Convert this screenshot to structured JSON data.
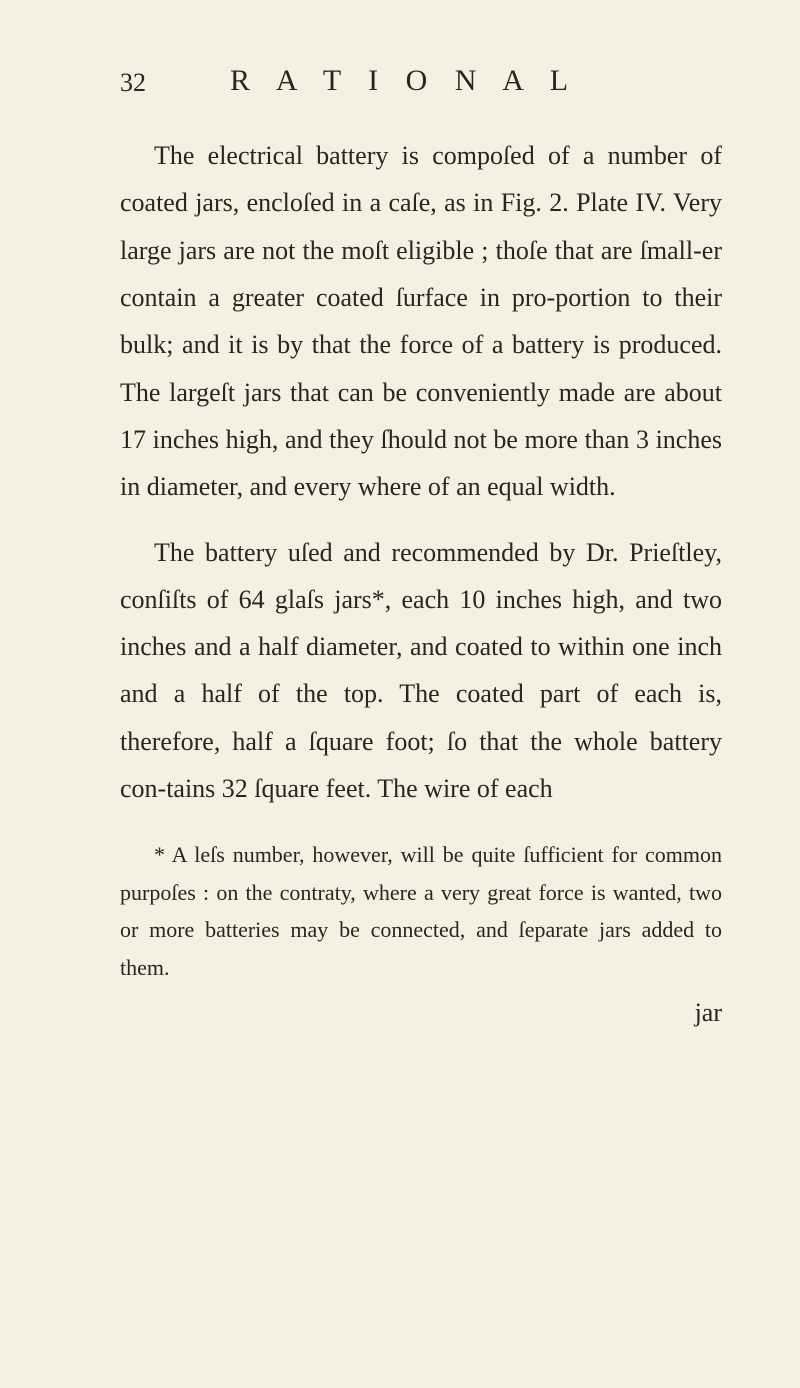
{
  "page": {
    "number": "32",
    "running_header": "R A T I O N A L"
  },
  "paragraphs": {
    "p1": "The electrical battery is compoſed of a number of coated jars, encloſed in a caſe, as in Fig. 2. Plate IV. Very large jars are not the moſt eligible ; thoſe that are ſmall-er contain a greater coated ſurface in pro-portion to their bulk; and it is by that the force of a battery is produced. The largeſt jars that can be conveniently made are about 17 inches high, and they ſhould not be more than 3 inches in diameter, and every where of an equal width.",
    "p2": "The battery uſed and recommended by Dr. Prieſtley, conſiſts of 64 glaſs jars*, each 10 inches high, and two inches and a half diameter, and coated to within one inch and a half of the top. The coated part of each is, therefore, half a ſquare foot; ſo that the whole battery con-tains 32 ſquare feet. The wire of each"
  },
  "footnote": {
    "text": "* A leſs number, however, will be quite ſufficient for common purpoſes : on the contraty, where a very great force is wanted, two or more batteries may be connected, and ſeparate jars added to them."
  },
  "catchword": "jar",
  "style": {
    "background_color": "#f5f0e1",
    "text_color": "#2a2520",
    "body_fontsize": 26,
    "footnote_fontsize": 22,
    "header_fontsize": 30,
    "line_height": 1.82
  }
}
